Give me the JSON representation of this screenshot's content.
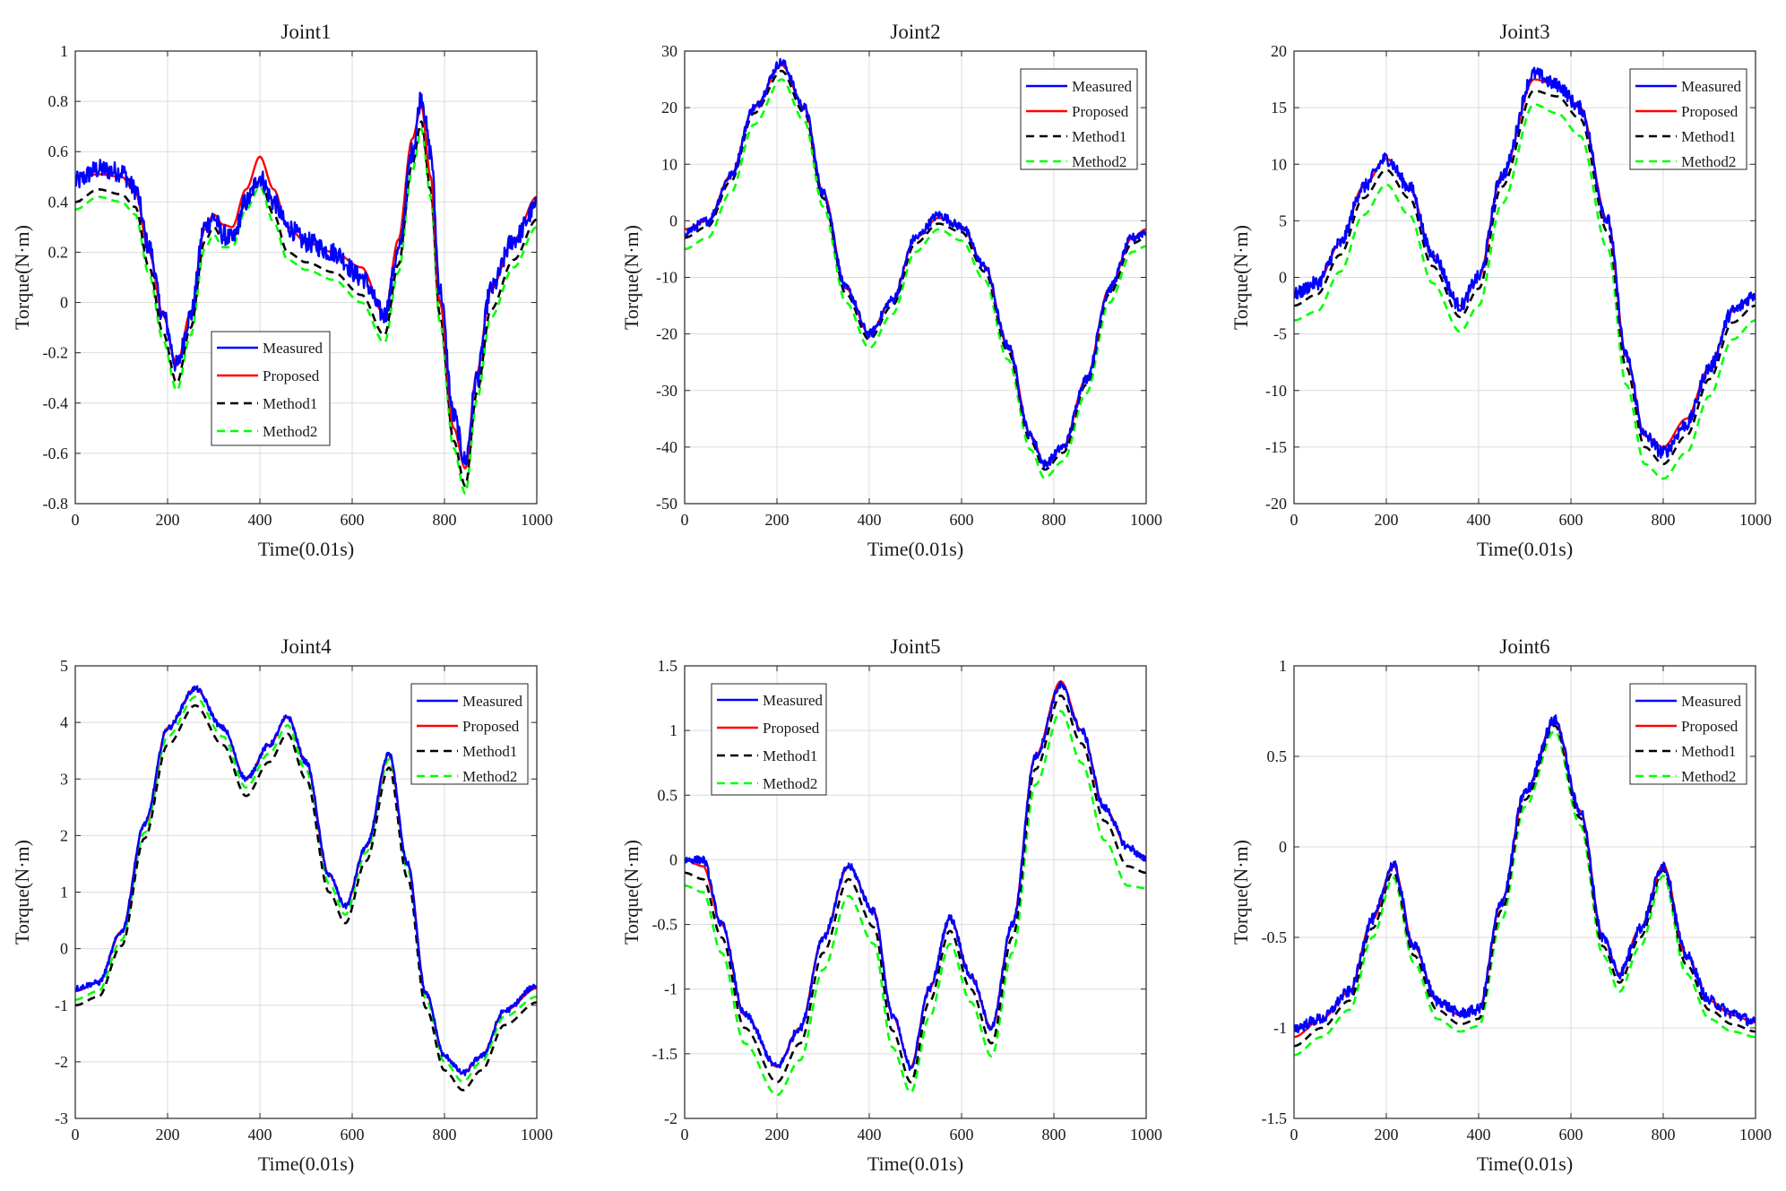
{
  "colors": {
    "measured": "#0000ff",
    "proposed": "#ff0000",
    "method1": "#000000",
    "method2": "#00ff00",
    "grid": "#dcdcdc",
    "axes": "#262626"
  },
  "legend_labels": [
    "Measured",
    "Proposed",
    "Method1",
    "Method2"
  ],
  "chart_data": [
    {
      "type": "line",
      "title": "Joint1",
      "xlabel": "Time(0.01s)",
      "ylabel": "Torque(N·m)",
      "xlim": [
        0,
        1000
      ],
      "ylim": [
        -0.8,
        1
      ],
      "xticks": [
        0,
        200,
        400,
        600,
        800,
        1000
      ],
      "yticks": [
        -0.8,
        -0.6,
        -0.4,
        -0.2,
        0,
        0.2,
        0.4,
        0.6,
        0.8,
        1
      ],
      "ytick_labels": [
        "-0.8",
        "-0.6",
        "-0.4",
        "-0.2",
        "0",
        "0.2",
        "0.4",
        "0.6",
        "0.8",
        "1"
      ],
      "legend_position": "lower-center",
      "grid": true,
      "x": [
        0,
        50,
        100,
        130,
        160,
        190,
        220,
        250,
        280,
        300,
        320,
        340,
        370,
        400,
        430,
        460,
        500,
        560,
        620,
        670,
        700,
        730,
        750,
        770,
        790,
        820,
        845,
        870,
        900,
        950,
        1000
      ],
      "series": [
        {
          "name": "Measured",
          "values": [
            0.48,
            0.53,
            0.52,
            0.45,
            0.22,
            -0.05,
            -0.25,
            -0.05,
            0.3,
            0.34,
            0.27,
            0.25,
            0.4,
            0.5,
            0.4,
            0.3,
            0.24,
            0.2,
            0.1,
            -0.05,
            0.2,
            0.6,
            0.82,
            0.6,
            0.05,
            -0.45,
            -0.63,
            -0.3,
            0.05,
            0.25,
            0.38
          ],
          "noise": 0.04
        },
        {
          "name": "Proposed",
          "values": [
            0.5,
            0.51,
            0.5,
            0.44,
            0.2,
            -0.05,
            -0.25,
            -0.04,
            0.29,
            0.35,
            0.31,
            0.3,
            0.45,
            0.58,
            0.45,
            0.3,
            0.24,
            0.2,
            0.14,
            -0.05,
            0.25,
            0.65,
            0.78,
            0.5,
            0.0,
            -0.5,
            -0.66,
            -0.28,
            0.05,
            0.25,
            0.42
          ]
        },
        {
          "name": "Method1",
          "values": [
            0.4,
            0.45,
            0.43,
            0.38,
            0.14,
            -0.12,
            -0.32,
            -0.1,
            0.24,
            0.3,
            0.25,
            0.25,
            0.4,
            0.49,
            0.35,
            0.2,
            0.16,
            0.12,
            0.03,
            -0.13,
            0.15,
            0.55,
            0.72,
            0.45,
            -0.05,
            -0.55,
            -0.73,
            -0.36,
            -0.03,
            0.17,
            0.33
          ]
        },
        {
          "name": "Method2",
          "values": [
            0.37,
            0.42,
            0.4,
            0.35,
            0.11,
            -0.15,
            -0.35,
            -0.13,
            0.21,
            0.27,
            0.22,
            0.22,
            0.37,
            0.46,
            0.32,
            0.17,
            0.13,
            0.09,
            0.0,
            -0.16,
            0.12,
            0.52,
            0.69,
            0.42,
            -0.08,
            -0.58,
            -0.76,
            -0.39,
            -0.06,
            0.14,
            0.3
          ]
        }
      ]
    },
    {
      "type": "line",
      "title": "Joint2",
      "xlabel": "Time(0.01s)",
      "ylabel": "Torque(N·m)",
      "xlim": [
        0,
        1000
      ],
      "ylim": [
        -50,
        30
      ],
      "xticks": [
        0,
        200,
        400,
        600,
        800,
        1000
      ],
      "yticks": [
        -50,
        -40,
        -30,
        -20,
        -10,
        0,
        10,
        20,
        30
      ],
      "ytick_labels": [
        "-50",
        "-40",
        "-30",
        "-20",
        "-10",
        "0",
        "10",
        "20",
        "30"
      ],
      "legend_position": "top-right",
      "grid": true,
      "x": [
        0,
        50,
        100,
        150,
        210,
        260,
        300,
        350,
        400,
        450,
        500,
        550,
        600,
        650,
        700,
        750,
        780,
        820,
        870,
        920,
        970,
        1000
      ],
      "series": [
        {
          "name": "Measured",
          "values": [
            -2,
            0,
            8,
            20,
            28,
            20,
            5,
            -12,
            -20,
            -14,
            -3,
            1,
            -1,
            -8,
            -22,
            -38,
            -43,
            -40,
            -28,
            -12,
            -3,
            -2
          ],
          "noise": 0.8
        },
        {
          "name": "Proposed",
          "values": [
            -1.5,
            0,
            8,
            20,
            27.5,
            20,
            5,
            -12,
            -20,
            -14,
            -3,
            0.5,
            -1,
            -8,
            -22,
            -38,
            -43,
            -40,
            -28,
            -12,
            -3,
            -1.5
          ]
        },
        {
          "name": "Method1",
          "values": [
            -3,
            -1,
            7,
            19,
            26.5,
            19,
            4,
            -13,
            -21,
            -15,
            -4,
            -0.5,
            -2,
            -9,
            -23,
            -39,
            -44,
            -41,
            -29,
            -13,
            -4,
            -3
          ]
        },
        {
          "name": "Method2",
          "values": [
            -5,
            -3,
            5,
            17,
            25,
            17.5,
            2.5,
            -14.5,
            -22.5,
            -16.5,
            -5.5,
            -1.5,
            -3.5,
            -10.5,
            -24.5,
            -40.5,
            -45.5,
            -42.5,
            -30.5,
            -14.5,
            -5.5,
            -4.5
          ]
        }
      ]
    },
    {
      "type": "line",
      "title": "Joint3",
      "xlabel": "Time(0.01s)",
      "ylabel": "Torque(N·m)",
      "xlim": [
        0,
        1000
      ],
      "ylim": [
        -20,
        20
      ],
      "xticks": [
        0,
        200,
        400,
        600,
        800,
        1000
      ],
      "yticks": [
        -20,
        -15,
        -10,
        -5,
        0,
        5,
        10,
        15,
        20
      ],
      "ytick_labels": [
        "-20",
        "-15",
        "-10",
        "-5",
        "0",
        "5",
        "10",
        "15",
        "20"
      ],
      "legend_position": "top-right",
      "grid": true,
      "x": [
        0,
        50,
        100,
        150,
        200,
        250,
        300,
        360,
        400,
        450,
        520,
        570,
        620,
        680,
        720,
        760,
        800,
        850,
        900,
        950,
        1000
      ],
      "series": [
        {
          "name": "Measured",
          "values": [
            -1.5,
            -0.5,
            3,
            8,
            10.5,
            8,
            2,
            -2.5,
            0,
            9,
            18,
            17,
            15,
            5,
            -7,
            -14,
            -15.5,
            -13,
            -8,
            -3,
            -1.5
          ],
          "noise": 0.6
        },
        {
          "name": "Proposed",
          "values": [
            -1.5,
            -0.5,
            3,
            8,
            10.5,
            8,
            2,
            -2.5,
            0,
            9,
            17.5,
            17,
            15,
            5,
            -7,
            -14,
            -15,
            -12.5,
            -8,
            -3,
            -1.5
          ]
        },
        {
          "name": "Method1",
          "values": [
            -2.5,
            -1.5,
            2,
            7,
            9.5,
            7,
            1,
            -3.5,
            -1,
            8,
            16.5,
            16,
            14,
            4,
            -8,
            -15,
            -16.5,
            -14,
            -9,
            -4,
            -2.5
          ]
        },
        {
          "name": "Method2",
          "values": [
            -3.8,
            -3,
            0.5,
            5.5,
            8.2,
            5.5,
            -0.5,
            -4.8,
            -2.5,
            6.5,
            15.3,
            14.5,
            12.5,
            2.5,
            -9.5,
            -16.5,
            -17.8,
            -15.5,
            -10.5,
            -5.5,
            -3.8
          ]
        }
      ]
    },
    {
      "type": "line",
      "title": "Joint4",
      "xlabel": "Time(0.01s)",
      "ylabel": "Torque(N·m)",
      "xlim": [
        0,
        1000
      ],
      "ylim": [
        -3,
        5
      ],
      "xticks": [
        0,
        200,
        400,
        600,
        800,
        1000
      ],
      "yticks": [
        -3,
        -2,
        -1,
        0,
        1,
        2,
        3,
        4,
        5
      ],
      "ytick_labels": [
        "-3",
        "-2",
        "-1",
        "0",
        "1",
        "2",
        "3",
        "4",
        "5"
      ],
      "legend_position": "top-right",
      "grid": true,
      "x": [
        0,
        50,
        100,
        150,
        200,
        260,
        320,
        370,
        420,
        460,
        500,
        550,
        585,
        630,
        680,
        720,
        760,
        800,
        840,
        880,
        930,
        1000
      ],
      "series": [
        {
          "name": "Measured",
          "values": [
            -0.7,
            -0.6,
            0.3,
            2.2,
            3.9,
            4.6,
            3.9,
            3.0,
            3.6,
            4.1,
            3.3,
            1.3,
            0.75,
            1.8,
            3.45,
            1.5,
            -0.8,
            -1.9,
            -2.2,
            -1.9,
            -1.1,
            -0.65
          ],
          "noise": 0.05
        },
        {
          "name": "Proposed",
          "values": [
            -0.75,
            -0.6,
            0.3,
            2.2,
            3.9,
            4.6,
            3.9,
            3.0,
            3.6,
            4.1,
            3.3,
            1.3,
            0.75,
            1.8,
            3.45,
            1.5,
            -0.8,
            -1.9,
            -2.2,
            -1.9,
            -1.1,
            -0.7
          ]
        },
        {
          "name": "Method1",
          "values": [
            -1.0,
            -0.85,
            0.05,
            1.95,
            3.6,
            4.3,
            3.6,
            2.7,
            3.3,
            3.8,
            3.0,
            1.0,
            0.45,
            1.55,
            3.2,
            1.25,
            -1.05,
            -2.15,
            -2.5,
            -2.15,
            -1.35,
            -0.95
          ]
        },
        {
          "name": "Method2",
          "values": [
            -0.9,
            -0.75,
            0.15,
            2.05,
            3.75,
            4.45,
            3.75,
            2.85,
            3.45,
            3.95,
            3.15,
            1.15,
            0.6,
            1.7,
            3.35,
            1.4,
            -0.9,
            -2.0,
            -2.35,
            -2.0,
            -1.2,
            -0.85
          ]
        }
      ]
    },
    {
      "type": "line",
      "title": "Joint5",
      "xlabel": "Time(0.01s)",
      "ylabel": "Torque(N·m)",
      "xlim": [
        0,
        1000
      ],
      "ylim": [
        -2,
        1.5
      ],
      "xticks": [
        0,
        200,
        400,
        600,
        800,
        1000
      ],
      "yticks": [
        -2,
        -1.5,
        -1,
        -0.5,
        0,
        0.5,
        1,
        1.5
      ],
      "ytick_labels": [
        "-2",
        "-1.5",
        "-1",
        "-0.5",
        "0",
        "0.5",
        "1",
        "1.5"
      ],
      "legend_position": "top-left",
      "grid": true,
      "x": [
        0,
        40,
        80,
        130,
        200,
        250,
        300,
        355,
        410,
        450,
        490,
        530,
        575,
        620,
        665,
        710,
        760,
        815,
        860,
        910,
        960,
        1000
      ],
      "series": [
        {
          "name": "Measured",
          "values": [
            0.0,
            0.0,
            -0.5,
            -1.2,
            -1.6,
            -1.3,
            -0.6,
            -0.05,
            -0.4,
            -1.2,
            -1.6,
            -1.0,
            -0.45,
            -0.9,
            -1.3,
            -0.5,
            0.8,
            1.35,
            1.0,
            0.4,
            0.1,
            0.0
          ],
          "noise": 0.03
        },
        {
          "name": "Proposed",
          "values": [
            0.0,
            -0.05,
            -0.5,
            -1.2,
            -1.6,
            -1.3,
            -0.6,
            -0.05,
            -0.4,
            -1.2,
            -1.6,
            -1.0,
            -0.45,
            -0.9,
            -1.3,
            -0.5,
            0.8,
            1.38,
            1.0,
            0.4,
            0.1,
            0.0
          ]
        },
        {
          "name": "Method1",
          "values": [
            -0.1,
            -0.15,
            -0.6,
            -1.3,
            -1.72,
            -1.42,
            -0.72,
            -0.15,
            -0.52,
            -1.32,
            -1.72,
            -1.1,
            -0.55,
            -1.0,
            -1.42,
            -0.6,
            0.7,
            1.27,
            0.9,
            0.3,
            -0.05,
            -0.1
          ]
        },
        {
          "name": "Method2",
          "values": [
            -0.2,
            -0.25,
            -0.72,
            -1.42,
            -1.82,
            -1.55,
            -0.85,
            -0.28,
            -0.65,
            -1.45,
            -1.8,
            -1.22,
            -0.65,
            -1.1,
            -1.52,
            -0.72,
            0.58,
            1.15,
            0.75,
            0.15,
            -0.2,
            -0.22
          ]
        }
      ]
    },
    {
      "type": "line",
      "title": "Joint6",
      "xlabel": "Time(0.01s)",
      "ylabel": "Torque(N·m)",
      "xlim": [
        0,
        1000
      ],
      "ylim": [
        -1.5,
        1
      ],
      "xticks": [
        0,
        200,
        400,
        600,
        800,
        1000
      ],
      "yticks": [
        -1.5,
        -1,
        -0.5,
        0,
        0.5,
        1
      ],
      "ytick_labels": [
        "-1.5",
        "-1",
        "-0.5",
        "0",
        "0.5",
        "1"
      ],
      "legend_position": "top-right",
      "grid": true,
      "x": [
        0,
        60,
        120,
        170,
        215,
        260,
        310,
        360,
        400,
        450,
        500,
        565,
        620,
        670,
        705,
        750,
        800,
        850,
        900,
        950,
        1000
      ],
      "series": [
        {
          "name": "Measured",
          "values": [
            -1.0,
            -0.95,
            -0.8,
            -0.4,
            -0.1,
            -0.55,
            -0.85,
            -0.92,
            -0.9,
            -0.3,
            0.3,
            0.7,
            0.2,
            -0.5,
            -0.7,
            -0.45,
            -0.1,
            -0.6,
            -0.85,
            -0.92,
            -0.97
          ],
          "noise": 0.03
        },
        {
          "name": "Proposed",
          "values": [
            -1.05,
            -0.95,
            -0.8,
            -0.4,
            -0.1,
            -0.55,
            -0.85,
            -0.93,
            -0.9,
            -0.3,
            0.3,
            0.7,
            0.2,
            -0.5,
            -0.7,
            -0.45,
            -0.1,
            -0.6,
            -0.85,
            -0.93,
            -0.97
          ]
        },
        {
          "name": "Method1",
          "values": [
            -1.1,
            -1.0,
            -0.85,
            -0.45,
            -0.14,
            -0.6,
            -0.9,
            -0.98,
            -0.95,
            -0.35,
            0.26,
            0.67,
            0.16,
            -0.55,
            -0.75,
            -0.5,
            -0.13,
            -0.65,
            -0.9,
            -0.98,
            -1.02
          ]
        },
        {
          "name": "Method2",
          "values": [
            -1.15,
            -1.05,
            -0.9,
            -0.5,
            -0.17,
            -0.64,
            -0.95,
            -1.02,
            -0.99,
            -0.4,
            0.22,
            0.64,
            0.12,
            -0.6,
            -0.8,
            -0.55,
            -0.16,
            -0.7,
            -0.95,
            -1.02,
            -1.05
          ]
        }
      ]
    }
  ]
}
